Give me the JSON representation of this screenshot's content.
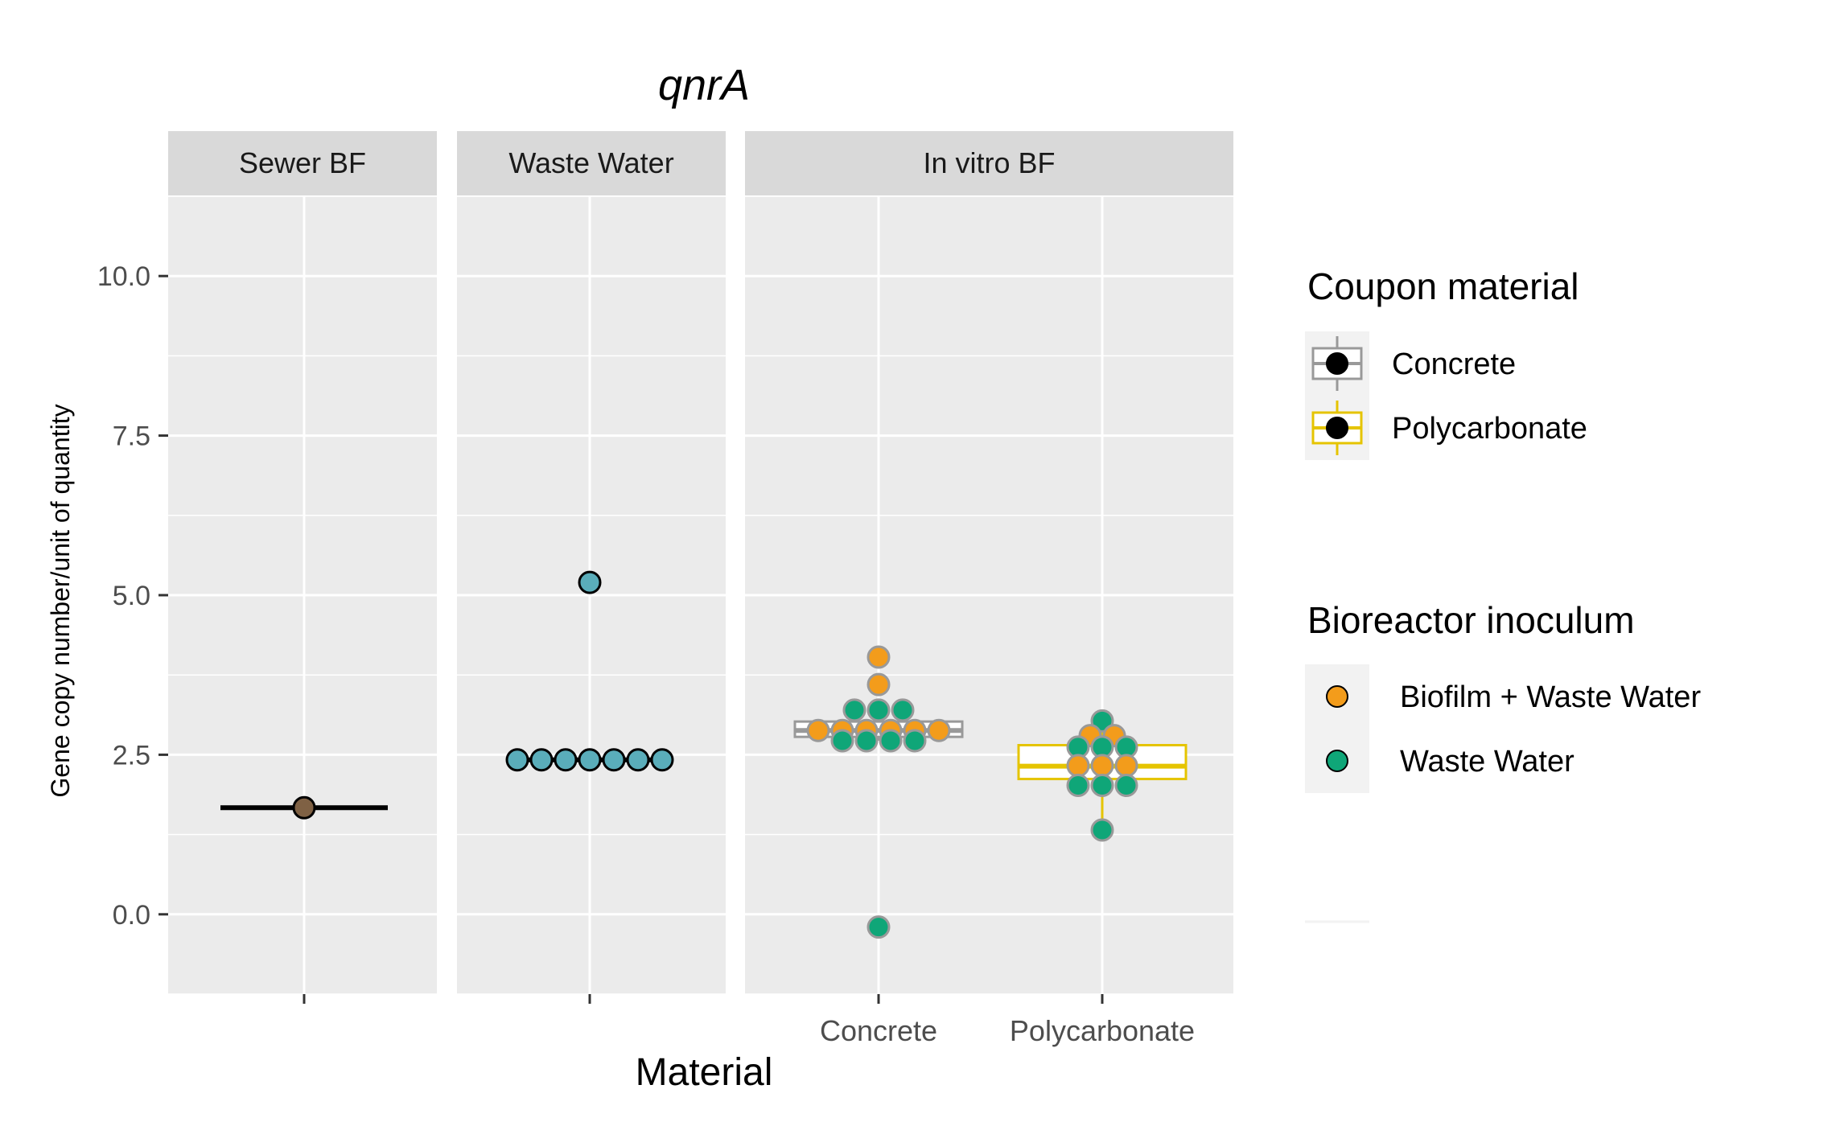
{
  "chart_data": {
    "type": "scatter",
    "title": "qnrA",
    "xlabel": "Material",
    "ylabel": "Gene copy number/unit of quantity",
    "ylim": [
      -1.25,
      11.25
    ],
    "yticks": [
      "0.0",
      "2.5",
      "5.0",
      "7.5",
      "10.0"
    ],
    "grid": true,
    "legend_position": "right",
    "panels": [
      {
        "label": "Sewer BF",
        "categories": [
          ""
        ],
        "boxes": [
          {
            "category": "",
            "q1": 1.67,
            "median": 1.67,
            "q3": 1.67,
            "whisker_low": 1.67,
            "whisker_high": 1.67,
            "border": "#000000",
            "fill": "#000000"
          }
        ],
        "points": [
          {
            "category": "",
            "y": 1.67,
            "fill": "#7F6144",
            "stroke": "#000000"
          }
        ]
      },
      {
        "label": "Waste Water",
        "categories": [
          ""
        ],
        "boxes": [
          {
            "category": "",
            "q1": 2.42,
            "median": 2.42,
            "q3": 2.42,
            "whisker_low": 2.42,
            "whisker_high": 2.42,
            "border": "#000000",
            "fill": "#000000",
            "outlier": 5.2
          }
        ],
        "points": [
          {
            "category": "",
            "y": 2.42,
            "offset": -3,
            "fill": "#5AADBA",
            "stroke": "#000000"
          },
          {
            "category": "",
            "y": 2.42,
            "offset": -2,
            "fill": "#5AADBA",
            "stroke": "#000000"
          },
          {
            "category": "",
            "y": 2.42,
            "offset": -1,
            "fill": "#5AADBA",
            "stroke": "#000000"
          },
          {
            "category": "",
            "y": 2.42,
            "offset": 0,
            "fill": "#5AADBA",
            "stroke": "#000000"
          },
          {
            "category": "",
            "y": 2.42,
            "offset": 1,
            "fill": "#5AADBA",
            "stroke": "#000000"
          },
          {
            "category": "",
            "y": 2.42,
            "offset": 2,
            "fill": "#5AADBA",
            "stroke": "#000000"
          },
          {
            "category": "",
            "y": 2.42,
            "offset": 3,
            "fill": "#5AADBA",
            "stroke": "#000000"
          },
          {
            "category": "",
            "y": 5.2,
            "offset": 0,
            "fill": "#5AADBA",
            "stroke": "#000000"
          }
        ]
      },
      {
        "label": "In vitro BF",
        "categories": [
          "Concrete",
          "Polycarbonate"
        ],
        "boxes": [
          {
            "category": "Concrete",
            "q1": 2.78,
            "median": 2.88,
            "q3": 3.02,
            "whisker_low": 2.72,
            "whisker_high": 3.2,
            "border": "#999999",
            "fill": "#ffffff",
            "outliers": [
              4.03,
              3.6,
              -0.2
            ]
          },
          {
            "category": "Polycarbonate",
            "q1": 2.12,
            "median": 2.32,
            "q3": 2.65,
            "whisker_low": 1.32,
            "whisker_high": 3.03,
            "border": "#E5C400",
            "fill": "#ffffff"
          }
        ],
        "points": [
          {
            "category": "Concrete",
            "y": 4.03,
            "offset": 0,
            "group": "Biofilm + Waste Water"
          },
          {
            "category": "Concrete",
            "y": 3.6,
            "offset": 0,
            "group": "Biofilm + Waste Water"
          },
          {
            "category": "Concrete",
            "y": 3.2,
            "offset": -1,
            "group": "Waste Water"
          },
          {
            "category": "Concrete",
            "y": 3.2,
            "offset": 0,
            "group": "Waste Water"
          },
          {
            "category": "Concrete",
            "y": 3.2,
            "offset": 1,
            "group": "Waste Water"
          },
          {
            "category": "Concrete",
            "y": 2.88,
            "offset": -2.5,
            "group": "Biofilm + Waste Water"
          },
          {
            "category": "Concrete",
            "y": 2.88,
            "offset": -1.5,
            "group": "Biofilm + Waste Water"
          },
          {
            "category": "Concrete",
            "y": 2.88,
            "offset": -0.5,
            "group": "Biofilm + Waste Water"
          },
          {
            "category": "Concrete",
            "y": 2.88,
            "offset": 0.5,
            "group": "Biofilm + Waste Water"
          },
          {
            "category": "Concrete",
            "y": 2.88,
            "offset": 1.5,
            "group": "Biofilm + Waste Water"
          },
          {
            "category": "Concrete",
            "y": 2.88,
            "offset": 2.5,
            "group": "Biofilm + Waste Water"
          },
          {
            "category": "Concrete",
            "y": 2.72,
            "offset": -1.5,
            "group": "Waste Water"
          },
          {
            "category": "Concrete",
            "y": 2.72,
            "offset": -0.5,
            "group": "Waste Water"
          },
          {
            "category": "Concrete",
            "y": 2.72,
            "offset": 0.5,
            "group": "Waste Water"
          },
          {
            "category": "Concrete",
            "y": 2.72,
            "offset": 1.5,
            "group": "Waste Water"
          },
          {
            "category": "Concrete",
            "y": -0.2,
            "offset": 0,
            "group": "Waste Water"
          },
          {
            "category": "Polycarbonate",
            "y": 3.03,
            "offset": 0,
            "group": "Waste Water"
          },
          {
            "category": "Polycarbonate",
            "y": 2.8,
            "offset": -0.5,
            "group": "Biofilm + Waste Water"
          },
          {
            "category": "Polycarbonate",
            "y": 2.8,
            "offset": 0.5,
            "group": "Biofilm + Waste Water"
          },
          {
            "category": "Polycarbonate",
            "y": 2.62,
            "offset": -1,
            "group": "Waste Water"
          },
          {
            "category": "Polycarbonate",
            "y": 2.62,
            "offset": 0,
            "group": "Waste Water"
          },
          {
            "category": "Polycarbonate",
            "y": 2.62,
            "offset": 1,
            "group": "Waste Water"
          },
          {
            "category": "Polycarbonate",
            "y": 2.33,
            "offset": -1,
            "group": "Biofilm + Waste Water"
          },
          {
            "category": "Polycarbonate",
            "y": 2.33,
            "offset": 0,
            "group": "Biofilm + Waste Water"
          },
          {
            "category": "Polycarbonate",
            "y": 2.33,
            "offset": 1,
            "group": "Biofilm + Waste Water"
          },
          {
            "category": "Polycarbonate",
            "y": 2.02,
            "offset": -1,
            "group": "Waste Water"
          },
          {
            "category": "Polycarbonate",
            "y": 2.02,
            "offset": 0,
            "group": "Waste Water"
          },
          {
            "category": "Polycarbonate",
            "y": 2.02,
            "offset": 1,
            "group": "Waste Water"
          },
          {
            "category": "Polycarbonate",
            "y": 1.32,
            "offset": 0,
            "group": "Waste Water"
          }
        ]
      }
    ],
    "legends": [
      {
        "title": "Coupon material",
        "entries": [
          {
            "label": "Concrete",
            "color": "#999999"
          },
          {
            "label": "Polycarbonate",
            "color": "#E5C400"
          }
        ]
      },
      {
        "title": "Bioreactor inoculum",
        "entries": [
          {
            "label": "Biofilm + Waste Water",
            "color": "#F39C1B"
          },
          {
            "label": "Waste Water",
            "color": "#0FA678"
          }
        ]
      }
    ],
    "group_colors": {
      "Biofilm + Waste Water": "#F39C1B",
      "Waste Water": "#0FA678"
    },
    "point_stroke_in_vitro": "#999999"
  }
}
